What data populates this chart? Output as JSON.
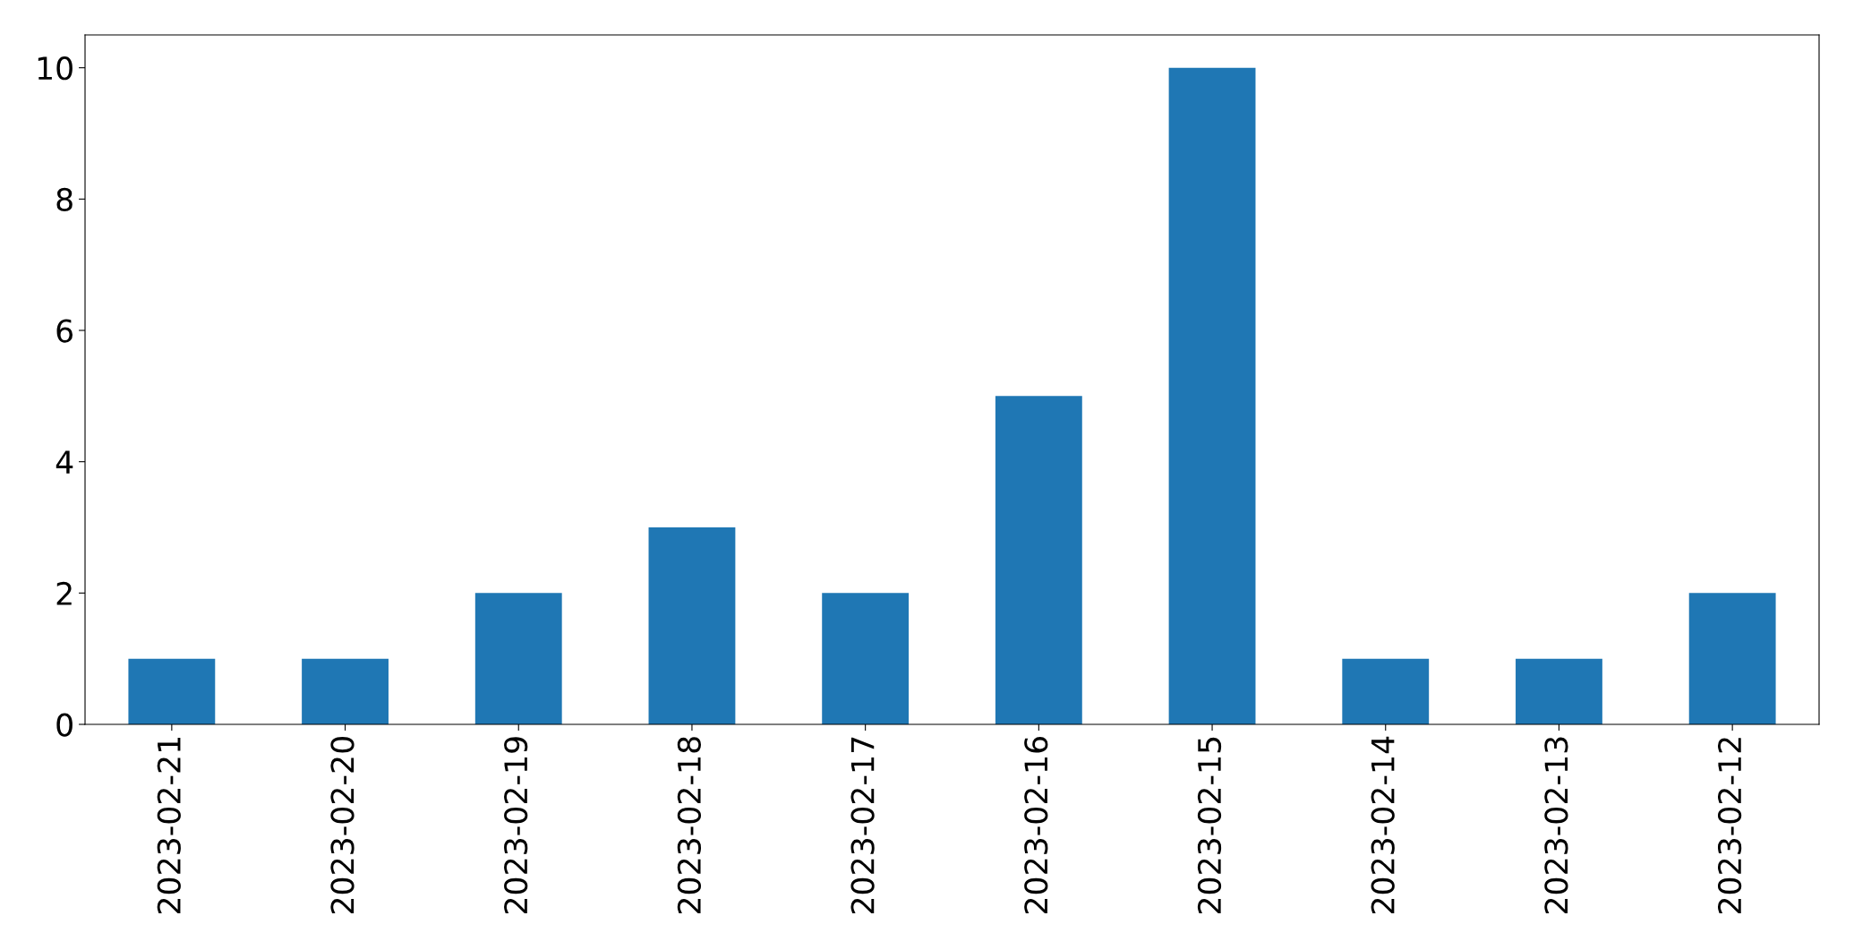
{
  "chart_data": {
    "type": "bar",
    "categories": [
      "2023-02-21",
      "2023-02-20",
      "2023-02-19",
      "2023-02-18",
      "2023-02-17",
      "2023-02-16",
      "2023-02-15",
      "2023-02-14",
      "2023-02-13",
      "2023-02-12"
    ],
    "values": [
      1,
      1,
      2,
      3,
      2,
      5,
      10,
      1,
      1,
      2
    ],
    "color": "#1f77b4",
    "ylim": [
      0,
      10.5
    ],
    "yticks": [
      0,
      2,
      4,
      6,
      8,
      10
    ],
    "grid": false,
    "legend": false
  }
}
